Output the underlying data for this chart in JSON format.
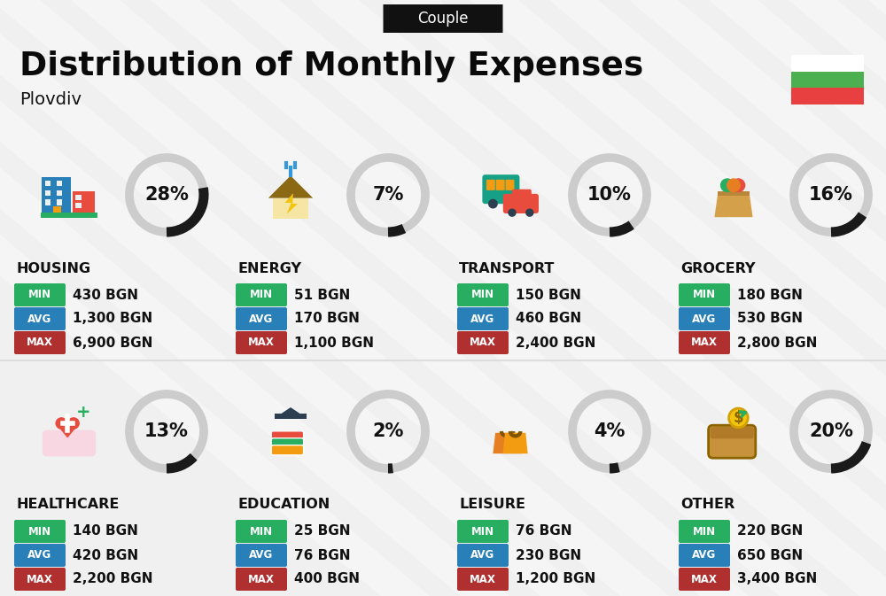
{
  "title": "Distribution of Monthly Expenses",
  "subtitle": "Couple",
  "city": "Plovdiv",
  "bg_color": "#f0f0f0",
  "categories": [
    {
      "name": "HOUSING",
      "pct": 28,
      "min": "430 BGN",
      "avg": "1,300 BGN",
      "max": "6,900 BGN",
      "row": 0,
      "col": 0
    },
    {
      "name": "ENERGY",
      "pct": 7,
      "min": "51 BGN",
      "avg": "170 BGN",
      "max": "1,100 BGN",
      "row": 0,
      "col": 1
    },
    {
      "name": "TRANSPORT",
      "pct": 10,
      "min": "150 BGN",
      "avg": "460 BGN",
      "max": "2,400 BGN",
      "row": 0,
      "col": 2
    },
    {
      "name": "GROCERY",
      "pct": 16,
      "min": "180 BGN",
      "avg": "530 BGN",
      "max": "2,800 BGN",
      "row": 0,
      "col": 3
    },
    {
      "name": "HEALTHCARE",
      "pct": 13,
      "min": "140 BGN",
      "avg": "420 BGN",
      "max": "2,200 BGN",
      "row": 1,
      "col": 0
    },
    {
      "name": "EDUCATION",
      "pct": 2,
      "min": "25 BGN",
      "avg": "76 BGN",
      "max": "400 BGN",
      "row": 1,
      "col": 1
    },
    {
      "name": "LEISURE",
      "pct": 4,
      "min": "76 BGN",
      "avg": "230 BGN",
      "max": "1,200 BGN",
      "row": 1,
      "col": 2
    },
    {
      "name": "OTHER",
      "pct": 20,
      "min": "220 BGN",
      "avg": "650 BGN",
      "max": "3,400 BGN",
      "row": 1,
      "col": 3
    }
  ],
  "min_color": "#27ae60",
  "avg_color": "#2980b9",
  "max_color": "#b03030",
  "flag_green": "#4caf50",
  "flag_red": "#e84040",
  "flag_white": "#ffffff",
  "stripe_color": "#e8e8e8",
  "couple_badge_color": "#111111",
  "title_color": "#0a0a0a",
  "city_color": "#111111",
  "gauge_bg_color": "#cccccc",
  "gauge_fg_color": "#1a1a1a",
  "separator_color": "#dddddd"
}
